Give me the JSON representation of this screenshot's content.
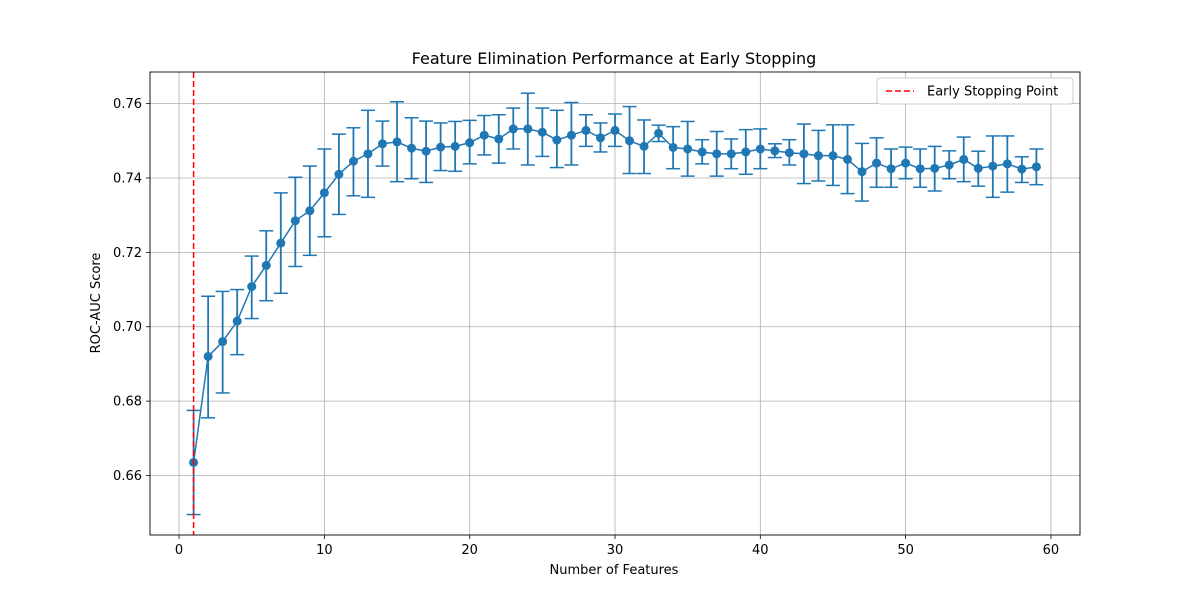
{
  "chart_data": {
    "type": "line",
    "title": "Feature Elimination Performance at Early Stopping",
    "xlabel": "Number of Features",
    "ylabel": "ROC-AUC Score",
    "xlim": [
      -2,
      62
    ],
    "ylim": [
      0.644,
      0.7685
    ],
    "xticks": [
      "0",
      "10",
      "20",
      "30",
      "40",
      "50",
      "60"
    ],
    "yticks": [
      "0.66",
      "0.68",
      "0.70",
      "0.72",
      "0.74",
      "0.76"
    ],
    "grid": true,
    "legend_position": "top-right",
    "series_color": "#1f77b4",
    "marker": "circle",
    "error_bars": true,
    "x": [
      1,
      2,
      3,
      4,
      5,
      6,
      7,
      8,
      9,
      10,
      11,
      12,
      13,
      14,
      15,
      16,
      17,
      18,
      19,
      20,
      21,
      22,
      23,
      24,
      25,
      26,
      27,
      28,
      29,
      30,
      31,
      32,
      33,
      34,
      35,
      36,
      37,
      38,
      39,
      40,
      41,
      42,
      43,
      44,
      45,
      46,
      47,
      48,
      49,
      50,
      51,
      52,
      53,
      54,
      55,
      56,
      57,
      58,
      59
    ],
    "y": [
      0.6635,
      0.692,
      0.696,
      0.7015,
      0.7108,
      0.7165,
      0.7225,
      0.7285,
      0.7312,
      0.736,
      0.741,
      0.7445,
      0.7465,
      0.7492,
      0.7497,
      0.748,
      0.7472,
      0.7483,
      0.7485,
      0.7495,
      0.7515,
      0.7505,
      0.7532,
      0.7532,
      0.7523,
      0.7502,
      0.7515,
      0.7528,
      0.7508,
      0.7528,
      0.75,
      0.7485,
      0.752,
      0.7482,
      0.7478,
      0.747,
      0.7465,
      0.7465,
      0.747,
      0.7478,
      0.7473,
      0.7468,
      0.7465,
      0.746,
      0.746,
      0.745,
      0.7417,
      0.744,
      0.7425,
      0.744,
      0.7425,
      0.7426,
      0.7435,
      0.745,
      0.7426,
      0.7432,
      0.7438,
      0.7424,
      0.743
    ],
    "y_lower": [
      0.6495,
      0.6755,
      0.6822,
      0.6925,
      0.7022,
      0.707,
      0.709,
      0.7162,
      0.7192,
      0.7242,
      0.7302,
      0.7352,
      0.7348,
      0.7432,
      0.739,
      0.7398,
      0.7388,
      0.742,
      0.7418,
      0.7438,
      0.7462,
      0.744,
      0.7478,
      0.7435,
      0.7458,
      0.7428,
      0.7435,
      0.7485,
      0.747,
      0.7485,
      0.7412,
      0.7412,
      0.7498,
      0.7425,
      0.7405,
      0.7438,
      0.7405,
      0.7425,
      0.741,
      0.7425,
      0.7455,
      0.7435,
      0.7385,
      0.7392,
      0.738,
      0.7358,
      0.7338,
      0.7375,
      0.7375,
      0.7398,
      0.7375,
      0.7365,
      0.7398,
      0.739,
      0.7378,
      0.7348,
      0.7362,
      0.7388,
      0.7382
    ],
    "y_upper": [
      0.6775,
      0.7082,
      0.7095,
      0.71,
      0.719,
      0.7258,
      0.736,
      0.7402,
      0.7432,
      0.7478,
      0.7518,
      0.7535,
      0.7582,
      0.7553,
      0.7605,
      0.7562,
      0.7553,
      0.7548,
      0.7552,
      0.7555,
      0.7568,
      0.757,
      0.7588,
      0.7628,
      0.7588,
      0.7582,
      0.7603,
      0.757,
      0.7548,
      0.7572,
      0.7592,
      0.7556,
      0.7542,
      0.7538,
      0.7552,
      0.7503,
      0.7525,
      0.7505,
      0.753,
      0.7532,
      0.7492,
      0.7503,
      0.7545,
      0.7528,
      0.7543,
      0.7543,
      0.7493,
      0.7508,
      0.7478,
      0.7483,
      0.7478,
      0.7485,
      0.7473,
      0.751,
      0.7472,
      0.7513,
      0.7513,
      0.7457,
      0.7478
    ],
    "early_stopping": {
      "x": 1,
      "label": "Early Stopping Point",
      "color": "#ff0000",
      "style": "dashed"
    }
  }
}
